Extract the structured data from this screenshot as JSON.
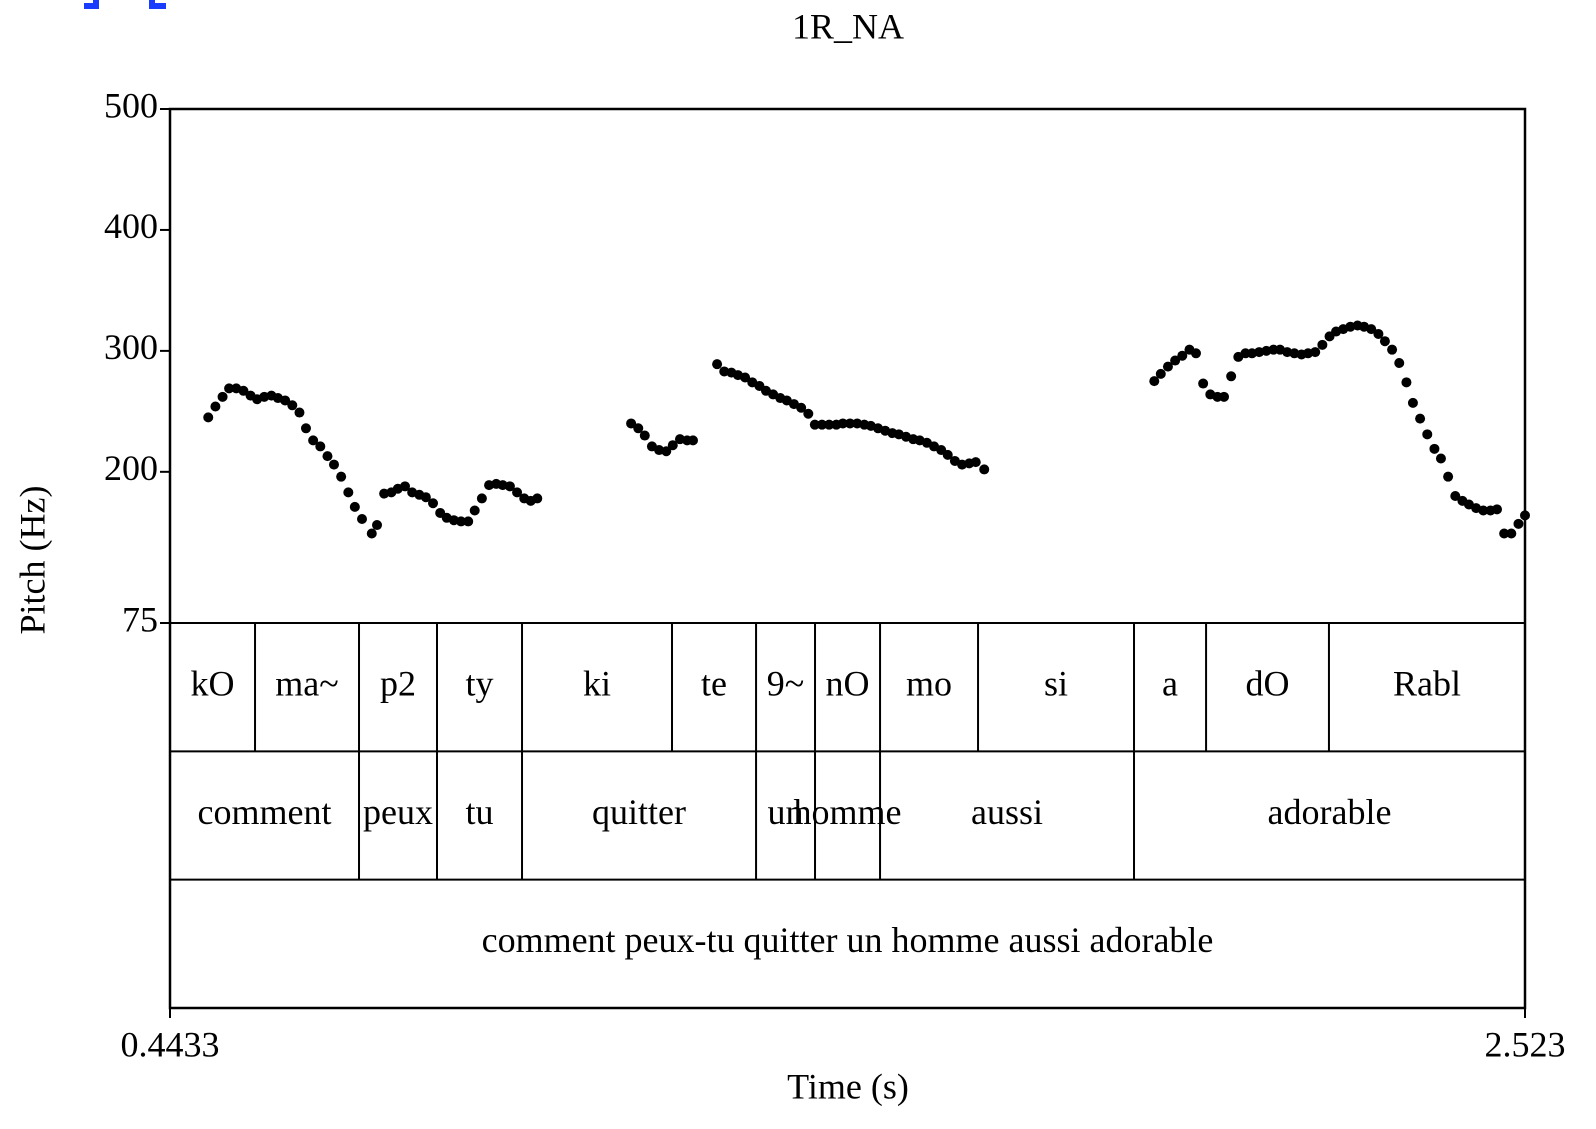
{
  "chart_data": {
    "type": "scatter",
    "title": "1R_NA",
    "xlabel": "Time (s)",
    "ylabel": "Pitch (Hz)",
    "color": "#000000",
    "xlim": [
      0.4433,
      2.523
    ],
    "ylim": [
      75,
      500
    ],
    "xticks": [
      0.4433,
      2.523
    ],
    "yticks": [
      75,
      200,
      300,
      400,
      500
    ],
    "x": [
      0.502,
      0.513,
      0.524,
      0.534,
      0.545,
      0.556,
      0.567,
      0.577,
      0.588,
      0.599,
      0.609,
      0.62,
      0.631,
      0.642,
      0.652,
      0.663,
      0.674,
      0.685,
      0.695,
      0.706,
      0.717,
      0.727,
      0.738,
      0.753,
      0.761,
      0.772,
      0.783,
      0.793,
      0.804,
      0.815,
      0.826,
      0.836,
      0.847,
      0.858,
      0.868,
      0.879,
      0.89,
      0.901,
      0.911,
      0.922,
      0.933,
      0.944,
      0.954,
      0.965,
      0.976,
      0.987,
      0.997,
      1.007,
      1.151,
      1.162,
      1.172,
      1.183,
      1.194,
      1.205,
      1.215,
      1.226,
      1.237,
      1.246,
      1.283,
      1.294,
      1.305,
      1.315,
      1.326,
      1.337,
      1.348,
      1.358,
      1.369,
      1.38,
      1.39,
      1.401,
      1.412,
      1.423,
      1.433,
      1.444,
      1.455,
      1.466,
      1.476,
      1.487,
      1.498,
      1.509,
      1.519,
      1.53,
      1.541,
      1.552,
      1.562,
      1.573,
      1.584,
      1.594,
      1.605,
      1.616,
      1.627,
      1.637,
      1.648,
      1.659,
      1.67,
      1.68,
      1.693,
      1.954,
      1.964,
      1.975,
      1.986,
      1.997,
      2.008,
      2.018,
      2.029,
      2.04,
      2.051,
      2.061,
      2.072,
      2.083,
      2.094,
      2.104,
      2.115,
      2.126,
      2.137,
      2.147,
      2.158,
      2.169,
      2.18,
      2.19,
      2.201,
      2.212,
      2.223,
      2.233,
      2.244,
      2.255,
      2.266,
      2.276,
      2.287,
      2.298,
      2.308,
      2.319,
      2.33,
      2.341,
      2.351,
      2.362,
      2.373,
      2.384,
      2.394,
      2.405,
      2.416,
      2.427,
      2.437,
      2.448,
      2.459,
      2.47,
      2.48,
      2.491,
      2.502,
      2.513,
      2.523
    ],
    "values": [
      245,
      254,
      262,
      269,
      269,
      267,
      263,
      260,
      262,
      263,
      261,
      259,
      255,
      249,
      236,
      226,
      221,
      213,
      206,
      196,
      183,
      171,
      161,
      149,
      156,
      182,
      183,
      186,
      188,
      183,
      181,
      179,
      174,
      166,
      162,
      160,
      159,
      159,
      168,
      178,
      189,
      190,
      189,
      188,
      183,
      178,
      176,
      178,
      240,
      236,
      230,
      221,
      218,
      217,
      222,
      227,
      226,
      226,
      289,
      283,
      282,
      280,
      278,
      274,
      271,
      267,
      264,
      261,
      259,
      256,
      253,
      248,
      239,
      239,
      239,
      239,
      240,
      240,
      240,
      239,
      238,
      236,
      234,
      232,
      231,
      229,
      227,
      226,
      224,
      221,
      218,
      214,
      209,
      206,
      207,
      208,
      202,
      275,
      281,
      287,
      292,
      296,
      301,
      298,
      273,
      264,
      262,
      262,
      279,
      295,
      298,
      298,
      299,
      300,
      301,
      301,
      299,
      298,
      297,
      298,
      299,
      305,
      312,
      316,
      318,
      320,
      321,
      320,
      318,
      314,
      308,
      301,
      290,
      274,
      257,
      244,
      231,
      219,
      211,
      196,
      180,
      176,
      173,
      170,
      168,
      168,
      169,
      149,
      149,
      157,
      164
    ],
    "tiers": [
      {
        "boundaries": [
          0.4433,
          0.5738,
          0.7334,
          0.8531,
          0.9836,
          1.2138,
          1.3428,
          1.4333,
          1.5331,
          1.6835,
          1.9229,
          2.0335,
          2.2221,
          2.523
        ],
        "labels": [
          "kO",
          "ma~",
          "p2",
          "ty",
          "ki",
          "te",
          "9~",
          "nO",
          "mo",
          "si",
          "a",
          "dO",
          "Rabl"
        ]
      },
      {
        "boundaries": [
          0.4433,
          0.7334,
          0.8531,
          0.9836,
          1.3428,
          1.4333,
          1.5331,
          1.9229,
          2.523
        ],
        "labels": [
          "comment",
          "peux",
          "tu",
          "quitter",
          "un",
          "homme",
          "aussi",
          "adorable"
        ]
      },
      {
        "boundaries": [
          0.4433,
          2.523
        ],
        "labels": [
          "comment peux-tu quitter un homme aussi adorable"
        ]
      }
    ]
  }
}
